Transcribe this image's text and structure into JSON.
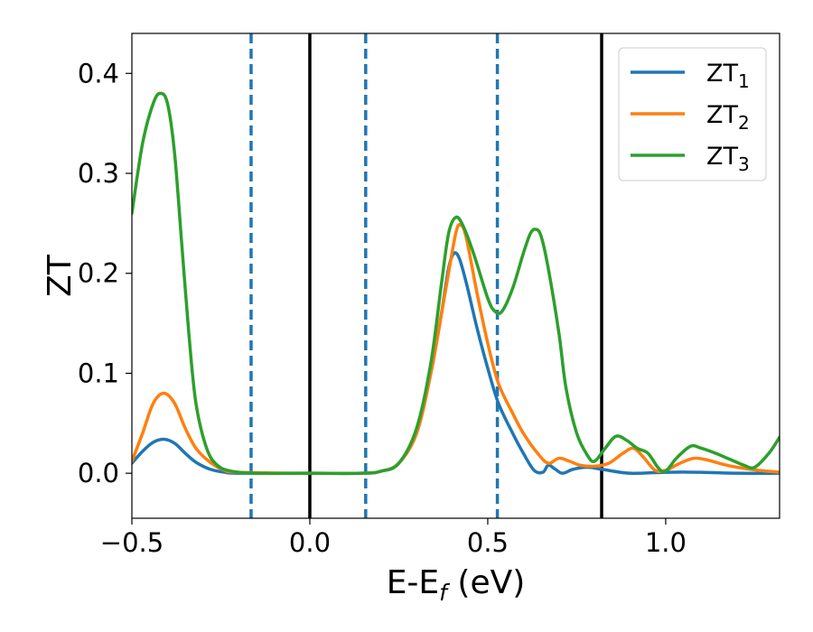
{
  "chart_data": {
    "type": "line",
    "title": "",
    "xlabel_main": "E-E",
    "xlabel_sub": "f",
    "xlabel_unit": " (eV)",
    "ylabel": "ZT",
    "xlim": [
      -0.5,
      1.32
    ],
    "ylim": [
      -0.045,
      0.44
    ],
    "xticks": [
      -0.5,
      0.0,
      0.5,
      1.0
    ],
    "xtick_labels": [
      "−0.5",
      "0.0",
      "0.5",
      "1.0"
    ],
    "yticks": [
      0.0,
      0.1,
      0.2,
      0.3,
      0.4
    ],
    "ytick_labels": [
      "0.0",
      "0.1",
      "0.2",
      "0.3",
      "0.4"
    ],
    "grid": false,
    "legend_position": "top-right",
    "vlines_solid": [
      0.0,
      0.82
    ],
    "vlines_dashed": [
      -0.165,
      0.157,
      0.527
    ],
    "colors": {
      "zt1": "#1f77b4",
      "zt2": "#ff7f0e",
      "zt3": "#2ca02c",
      "vline_solid": "#000000",
      "vline_dashed": "#1f77b4"
    },
    "series": [
      {
        "name": "ZT",
        "sub": "1",
        "color": "#1f77b4",
        "points": [
          [
            -0.5,
            0.01
          ],
          [
            -0.47,
            0.022
          ],
          [
            -0.44,
            0.031
          ],
          [
            -0.41,
            0.034
          ],
          [
            -0.38,
            0.03
          ],
          [
            -0.35,
            0.02
          ],
          [
            -0.32,
            0.011
          ],
          [
            -0.28,
            0.004
          ],
          [
            -0.24,
            0.001
          ],
          [
            -0.2,
            0.0
          ],
          [
            0.0,
            0.0
          ],
          [
            0.15,
            0.0
          ],
          [
            0.2,
            0.002
          ],
          [
            0.25,
            0.01
          ],
          [
            0.3,
            0.04
          ],
          [
            0.34,
            0.1
          ],
          [
            0.37,
            0.16
          ],
          [
            0.39,
            0.205
          ],
          [
            0.405,
            0.22
          ],
          [
            0.42,
            0.215
          ],
          [
            0.44,
            0.19
          ],
          [
            0.47,
            0.145
          ],
          [
            0.5,
            0.105
          ],
          [
            0.53,
            0.07
          ],
          [
            0.57,
            0.04
          ],
          [
            0.6,
            0.02
          ],
          [
            0.63,
            0.003
          ],
          [
            0.655,
            0.001
          ],
          [
            0.67,
            0.008
          ],
          [
            0.69,
            0.004
          ],
          [
            0.71,
            0.0
          ],
          [
            0.74,
            0.004
          ],
          [
            0.78,
            0.006
          ],
          [
            0.82,
            0.004
          ],
          [
            0.9,
            0.0
          ],
          [
            1.0,
            0.001
          ],
          [
            1.1,
            0.001
          ],
          [
            1.2,
            0.0
          ],
          [
            1.32,
            0.0
          ]
        ]
      },
      {
        "name": "ZT",
        "sub": "2",
        "color": "#ff7f0e",
        "points": [
          [
            -0.5,
            0.012
          ],
          [
            -0.47,
            0.04
          ],
          [
            -0.44,
            0.07
          ],
          [
            -0.41,
            0.08
          ],
          [
            -0.38,
            0.07
          ],
          [
            -0.35,
            0.045
          ],
          [
            -0.32,
            0.025
          ],
          [
            -0.28,
            0.011
          ],
          [
            -0.24,
            0.003
          ],
          [
            -0.2,
            0.001
          ],
          [
            0.0,
            0.0
          ],
          [
            0.15,
            0.0
          ],
          [
            0.2,
            0.002
          ],
          [
            0.25,
            0.01
          ],
          [
            0.3,
            0.04
          ],
          [
            0.34,
            0.1
          ],
          [
            0.38,
            0.18
          ],
          [
            0.41,
            0.24
          ],
          [
            0.425,
            0.248
          ],
          [
            0.44,
            0.235
          ],
          [
            0.47,
            0.18
          ],
          [
            0.5,
            0.13
          ],
          [
            0.53,
            0.09
          ],
          [
            0.57,
            0.06
          ],
          [
            0.6,
            0.04
          ],
          [
            0.64,
            0.02
          ],
          [
            0.67,
            0.01
          ],
          [
            0.7,
            0.015
          ],
          [
            0.73,
            0.012
          ],
          [
            0.76,
            0.008
          ],
          [
            0.8,
            0.007
          ],
          [
            0.84,
            0.01
          ],
          [
            0.88,
            0.02
          ],
          [
            0.91,
            0.025
          ],
          [
            0.94,
            0.015
          ],
          [
            0.97,
            0.003
          ],
          [
            1.0,
            0.003
          ],
          [
            1.04,
            0.01
          ],
          [
            1.08,
            0.015
          ],
          [
            1.12,
            0.013
          ],
          [
            1.16,
            0.009
          ],
          [
            1.2,
            0.006
          ],
          [
            1.26,
            0.003
          ],
          [
            1.32,
            0.001
          ]
        ]
      },
      {
        "name": "ZT",
        "sub": "3",
        "color": "#2ca02c",
        "points": [
          [
            -0.5,
            0.26
          ],
          [
            -0.47,
            0.33
          ],
          [
            -0.44,
            0.37
          ],
          [
            -0.42,
            0.38
          ],
          [
            -0.4,
            0.37
          ],
          [
            -0.38,
            0.32
          ],
          [
            -0.36,
            0.23
          ],
          [
            -0.34,
            0.14
          ],
          [
            -0.32,
            0.07
          ],
          [
            -0.29,
            0.025
          ],
          [
            -0.26,
            0.008
          ],
          [
            -0.22,
            0.002
          ],
          [
            -0.15,
            0.0
          ],
          [
            0.0,
            0.0
          ],
          [
            0.15,
            0.0
          ],
          [
            0.2,
            0.002
          ],
          [
            0.25,
            0.01
          ],
          [
            0.3,
            0.045
          ],
          [
            0.34,
            0.11
          ],
          [
            0.37,
            0.19
          ],
          [
            0.39,
            0.24
          ],
          [
            0.41,
            0.256
          ],
          [
            0.43,
            0.248
          ],
          [
            0.46,
            0.22
          ],
          [
            0.5,
            0.175
          ],
          [
            0.52,
            0.162
          ],
          [
            0.54,
            0.162
          ],
          [
            0.57,
            0.185
          ],
          [
            0.6,
            0.22
          ],
          [
            0.62,
            0.24
          ],
          [
            0.635,
            0.244
          ],
          [
            0.65,
            0.237
          ],
          [
            0.67,
            0.205
          ],
          [
            0.7,
            0.14
          ],
          [
            0.72,
            0.085
          ],
          [
            0.75,
            0.04
          ],
          [
            0.78,
            0.018
          ],
          [
            0.8,
            0.012
          ],
          [
            0.83,
            0.025
          ],
          [
            0.86,
            0.037
          ],
          [
            0.89,
            0.033
          ],
          [
            0.92,
            0.025
          ],
          [
            0.95,
            0.02
          ],
          [
            0.98,
            0.005
          ],
          [
            1.0,
            0.002
          ],
          [
            1.03,
            0.015
          ],
          [
            1.07,
            0.027
          ],
          [
            1.1,
            0.025
          ],
          [
            1.14,
            0.02
          ],
          [
            1.18,
            0.014
          ],
          [
            1.22,
            0.008
          ],
          [
            1.25,
            0.006
          ],
          [
            1.29,
            0.02
          ],
          [
            1.32,
            0.036
          ]
        ]
      }
    ]
  }
}
